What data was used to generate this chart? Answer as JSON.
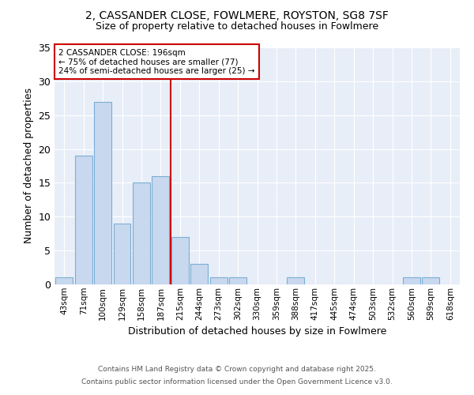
{
  "title1": "2, CASSANDER CLOSE, FOWLMERE, ROYSTON, SG8 7SF",
  "title2": "Size of property relative to detached houses in Fowlmere",
  "xlabel": "Distribution of detached houses by size in Fowlmere",
  "ylabel": "Number of detached properties",
  "categories": [
    "43sqm",
    "71sqm",
    "100sqm",
    "129sqm",
    "158sqm",
    "187sqm",
    "215sqm",
    "244sqm",
    "273sqm",
    "302sqm",
    "330sqm",
    "359sqm",
    "388sqm",
    "417sqm",
    "445sqm",
    "474sqm",
    "503sqm",
    "532sqm",
    "560sqm",
    "589sqm",
    "618sqm"
  ],
  "values": [
    1,
    19,
    27,
    9,
    15,
    16,
    7,
    3,
    1,
    1,
    0,
    0,
    1,
    0,
    0,
    0,
    0,
    0,
    1,
    1,
    0
  ],
  "bar_color": "#c8d8ee",
  "bar_edge_color": "#7aafd4",
  "background_color": "#ffffff",
  "plot_bg_color": "#e8eef8",
  "grid_color": "#ffffff",
  "vline_x": 5.5,
  "vline_color": "#cc0000",
  "annotation_title": "2 CASSANDER CLOSE: 196sqm",
  "annotation_line2": "← 75% of detached houses are smaller (77)",
  "annotation_line3": "24% of semi-detached houses are larger (25) →",
  "annotation_box_color": "#ffffff",
  "annotation_box_edge": "#cc0000",
  "ylim": [
    0,
    35
  ],
  "yticks": [
    0,
    5,
    10,
    15,
    20,
    25,
    30,
    35
  ],
  "footer1": "Contains HM Land Registry data © Crown copyright and database right 2025.",
  "footer2": "Contains public sector information licensed under the Open Government Licence v3.0.",
  "title1_fontsize": 10,
  "title2_fontsize": 9,
  "xlabel_fontsize": 9,
  "ylabel_fontsize": 9,
  "xtick_fontsize": 7.5,
  "ytick_fontsize": 9,
  "annot_fontsize": 7.5,
  "footer_fontsize": 6.5
}
